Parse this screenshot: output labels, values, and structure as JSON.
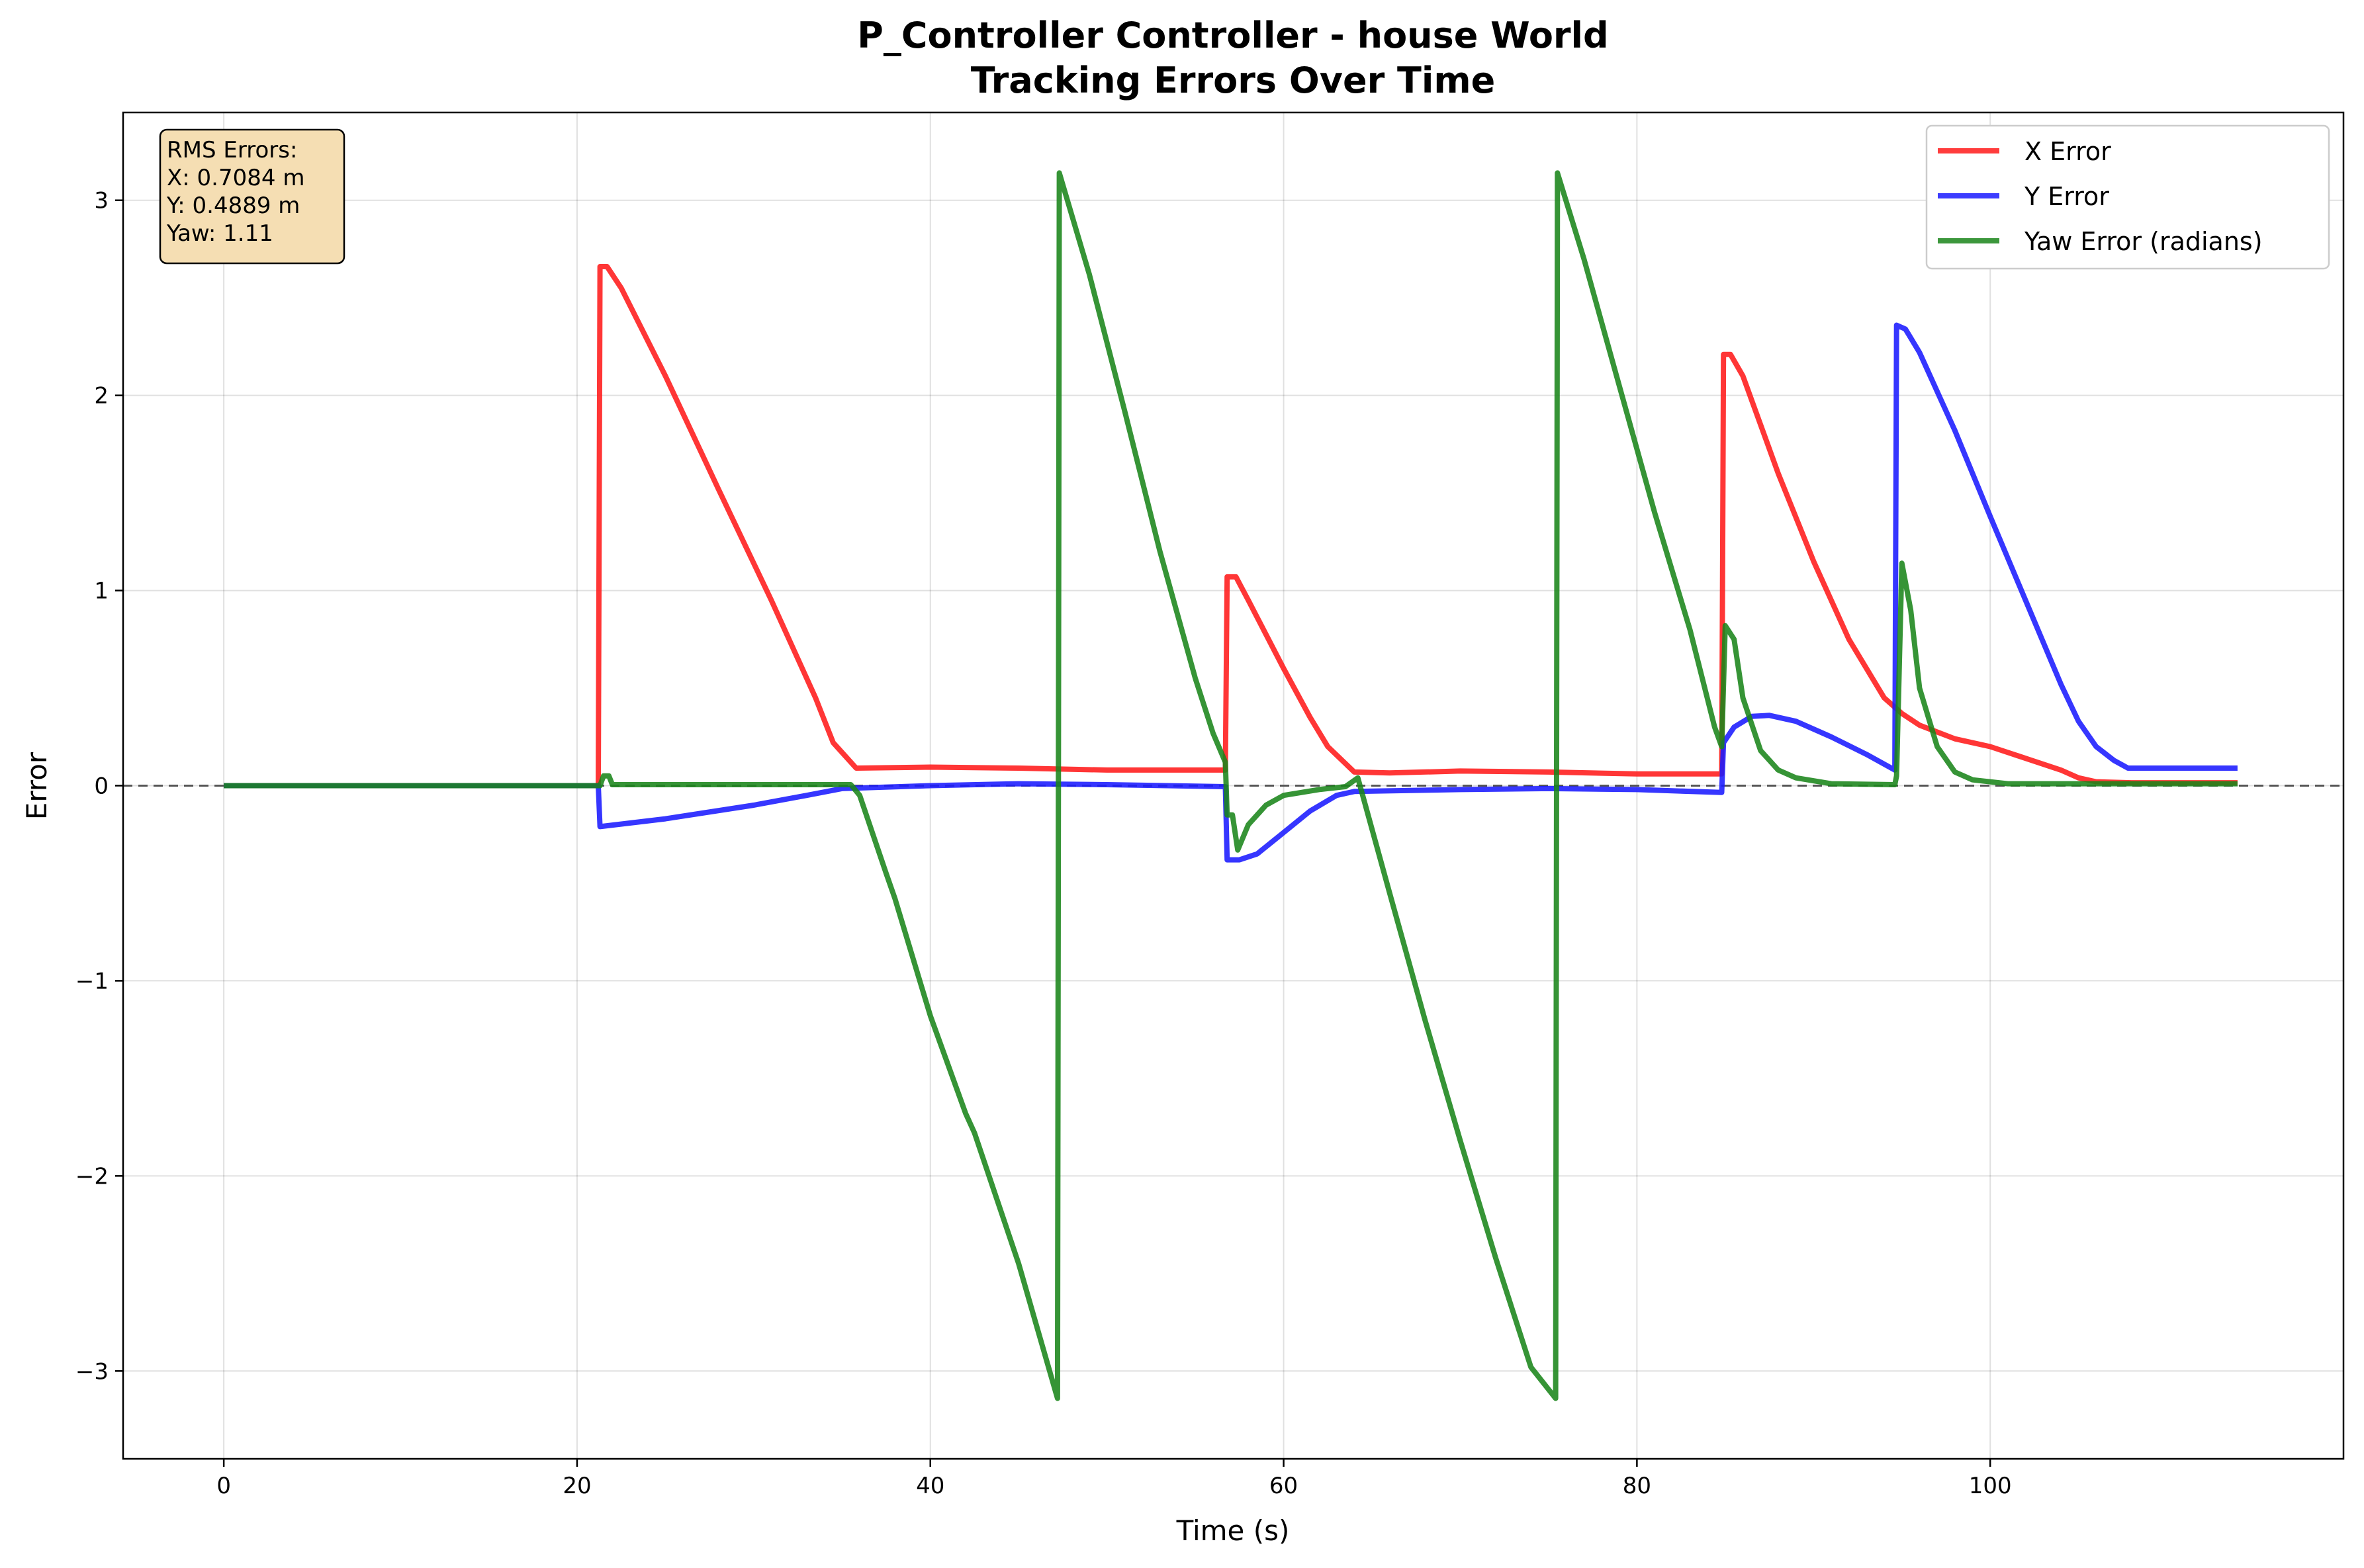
{
  "chart_data": {
    "type": "line",
    "title": "P_Controller Controller - house World",
    "subtitle": "Tracking Errors Over Time",
    "xlabel": "Time (s)",
    "ylabel": "Error",
    "xlim": [
      -5.7,
      120
    ],
    "ylim": [
      -3.45,
      3.45
    ],
    "xticks": [
      0,
      20,
      40,
      60,
      80,
      100
    ],
    "yticks": [
      -3,
      -2,
      -1,
      0,
      1,
      2,
      3
    ],
    "xtick_labels": [
      "0",
      "20",
      "40",
      "60",
      "80",
      "100"
    ],
    "ytick_labels": [
      "−3",
      "−2",
      "−1",
      "0",
      "1",
      "2",
      "3"
    ],
    "grid": true,
    "zero_reference_line": true,
    "legend_position": "top-right",
    "annotation": {
      "title": "RMS Errors:",
      "lines": [
        "X: 0.7084 m",
        "Y: 0.4889 m",
        "Yaw: 1.11"
      ]
    },
    "series": [
      {
        "name": "X Error",
        "color": "#ff1a1a",
        "points": [
          [
            0,
            0
          ],
          [
            21.2,
            0
          ],
          [
            21.3,
            2.66
          ],
          [
            21.7,
            2.66
          ],
          [
            22.5,
            2.55
          ],
          [
            25,
            2.1
          ],
          [
            28,
            1.52
          ],
          [
            31,
            0.95
          ],
          [
            33.5,
            0.45
          ],
          [
            34.5,
            0.22
          ],
          [
            35.8,
            0.09
          ],
          [
            40,
            0.095
          ],
          [
            45,
            0.09
          ],
          [
            50,
            0.08
          ],
          [
            56.7,
            0.08
          ],
          [
            56.8,
            1.07
          ],
          [
            57.3,
            1.07
          ],
          [
            58,
            0.95
          ],
          [
            60,
            0.6
          ],
          [
            61.5,
            0.35
          ],
          [
            62.5,
            0.2
          ],
          [
            64,
            0.07
          ],
          [
            66,
            0.065
          ],
          [
            70,
            0.075
          ],
          [
            75,
            0.07
          ],
          [
            80,
            0.06
          ],
          [
            84.8,
            0.06
          ],
          [
            84.9,
            2.21
          ],
          [
            85.3,
            2.21
          ],
          [
            86,
            2.1
          ],
          [
            88,
            1.6
          ],
          [
            90,
            1.15
          ],
          [
            92,
            0.75
          ],
          [
            94,
            0.45
          ],
          [
            95,
            0.37
          ],
          [
            96,
            0.31
          ],
          [
            98,
            0.24
          ],
          [
            100,
            0.2
          ],
          [
            102,
            0.14
          ],
          [
            104,
            0.08
          ],
          [
            105,
            0.04
          ],
          [
            106,
            0.02
          ],
          [
            108,
            0.015
          ],
          [
            114,
            0.015
          ]
        ]
      },
      {
        "name": "Y Error",
        "color": "#1a1aff",
        "points": [
          [
            0,
            0
          ],
          [
            21.2,
            0
          ],
          [
            21.3,
            -0.21
          ],
          [
            25,
            -0.17
          ],
          [
            30,
            -0.1
          ],
          [
            33,
            -0.05
          ],
          [
            35,
            -0.015
          ],
          [
            40,
            0
          ],
          [
            45,
            0.01
          ],
          [
            50,
            0.005
          ],
          [
            56.7,
            -0.005
          ],
          [
            56.8,
            -0.38
          ],
          [
            57.5,
            -0.38
          ],
          [
            58.5,
            -0.35
          ],
          [
            60,
            -0.24
          ],
          [
            61.5,
            -0.13
          ],
          [
            63,
            -0.05
          ],
          [
            64,
            -0.03
          ],
          [
            70,
            -0.02
          ],
          [
            75,
            -0.015
          ],
          [
            80,
            -0.02
          ],
          [
            84.8,
            -0.035
          ],
          [
            84.9,
            0.22
          ],
          [
            85.5,
            0.3
          ],
          [
            86.5,
            0.355
          ],
          [
            87.5,
            0.36
          ],
          [
            89,
            0.33
          ],
          [
            91,
            0.25
          ],
          [
            93,
            0.16
          ],
          [
            94.6,
            0.08
          ],
          [
            94.7,
            2.36
          ],
          [
            95.2,
            2.34
          ],
          [
            96,
            2.22
          ],
          [
            98,
            1.82
          ],
          [
            100,
            1.38
          ],
          [
            102,
            0.95
          ],
          [
            104,
            0.52
          ],
          [
            105,
            0.33
          ],
          [
            106,
            0.2
          ],
          [
            107,
            0.13
          ],
          [
            107.8,
            0.09
          ],
          [
            108,
            0.09
          ],
          [
            114,
            0.09
          ]
        ]
      },
      {
        "name": "Yaw Error (radians)",
        "color": "#1a851a",
        "points": [
          [
            0,
            0
          ],
          [
            21.3,
            0
          ],
          [
            21.5,
            0.05
          ],
          [
            21.8,
            0.05
          ],
          [
            22,
            0.005
          ],
          [
            35.5,
            0.005
          ],
          [
            36,
            -0.05
          ],
          [
            37.5,
            -0.45
          ],
          [
            38,
            -0.58
          ],
          [
            40,
            -1.18
          ],
          [
            42,
            -1.68
          ],
          [
            42.5,
            -1.78
          ],
          [
            45,
            -2.45
          ],
          [
            47.2,
            -3.14
          ],
          [
            47.3,
            3.14
          ],
          [
            49,
            2.62
          ],
          [
            51,
            1.92
          ],
          [
            53,
            1.2
          ],
          [
            55,
            0.55
          ],
          [
            56,
            0.27
          ],
          [
            56.7,
            0.12
          ],
          [
            56.8,
            -0.15
          ],
          [
            57.1,
            -0.15
          ],
          [
            57.4,
            -0.33
          ],
          [
            58,
            -0.2
          ],
          [
            59,
            -0.1
          ],
          [
            60,
            -0.05
          ],
          [
            62,
            -0.02
          ],
          [
            63.5,
            -0.005
          ],
          [
            64.2,
            0.04
          ],
          [
            66,
            -0.55
          ],
          [
            68,
            -1.2
          ],
          [
            70,
            -1.82
          ],
          [
            72,
            -2.42
          ],
          [
            74,
            -2.98
          ],
          [
            75.4,
            -3.14
          ],
          [
            75.5,
            3.14
          ],
          [
            77,
            2.7
          ],
          [
            79,
            2.05
          ],
          [
            81,
            1.4
          ],
          [
            83,
            0.8
          ],
          [
            84.4,
            0.3
          ],
          [
            84.8,
            0.2
          ],
          [
            85,
            0.82
          ],
          [
            85.5,
            0.75
          ],
          [
            86,
            0.45
          ],
          [
            87,
            0.18
          ],
          [
            88,
            0.08
          ],
          [
            89,
            0.04
          ],
          [
            91,
            0.01
          ],
          [
            94.6,
            0.005
          ],
          [
            94.7,
            0.05
          ],
          [
            95,
            1.14
          ],
          [
            95.5,
            0.9
          ],
          [
            96,
            0.5
          ],
          [
            97,
            0.2
          ],
          [
            98,
            0.07
          ],
          [
            99,
            0.03
          ],
          [
            101,
            0.01
          ],
          [
            114,
            0.01
          ]
        ]
      }
    ]
  }
}
